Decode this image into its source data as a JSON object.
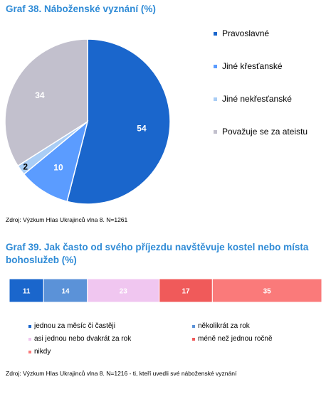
{
  "chart1": {
    "title": "Graf 38. Náboženské vyznání  (%)",
    "source": "Zdroj: Výzkum Hlas Ukrajinců vlna 8. N=1261"
  },
  "chart2": {
    "title": "Graf 39. Jak často od svého příjezdu navštěvuje kostel nebo místa bohoslužeb  (%)",
    "source": "Zdroj: Výzkum Hlas Ukrajinců vlna 8. N=1216 - ti, kteří uvedli své náboženské vyznání"
  },
  "chart_data": [
    {
      "type": "pie",
      "title": "Graf 38. Náboženské vyznání  (%)",
      "categories": [
        "Pravoslavné",
        "Jiné křesťanské",
        "Jiné nekřesťanské",
        "Považuje se za ateistu"
      ],
      "values": [
        54,
        10,
        2,
        34
      ],
      "colors": [
        "#1a66cc",
        "#5b9cff",
        "#a9cdf5",
        "#c2c0cd"
      ],
      "label_colors": [
        "#ffffff",
        "#ffffff",
        "#000000",
        "#ffffff"
      ],
      "legend_position": "right"
    },
    {
      "type": "bar",
      "orientation": "horizontal-stacked",
      "title": "Graf 39. Jak často od svého příjezdu navštěvuje kostel nebo místa bohoslužeb  (%)",
      "categories": [
        "jednou za měsíc či častěji",
        "několikrát za rok",
        "asi jednou nebo dvakrát za rok",
        "méně než jednou ročně",
        "nikdy"
      ],
      "values": [
        11,
        14,
        23,
        17,
        35
      ],
      "colors": [
        "#1a66cc",
        "#5b92d8",
        "#f0c6f0",
        "#f05a5a",
        "#fa7a7a"
      ],
      "label_colors": [
        "#ffffff",
        "#ffffff",
        "#ffffff",
        "#ffffff",
        "#ffffff"
      ],
      "legend_position": "bottom"
    }
  ]
}
